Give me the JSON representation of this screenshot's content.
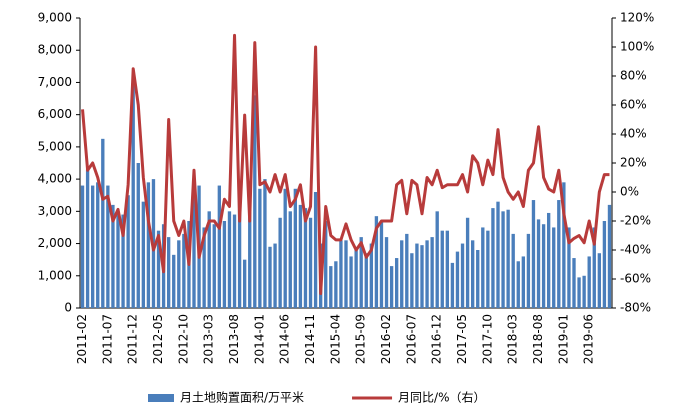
{
  "chart_data": {
    "type": "bar-line",
    "categories": [
      "2011-02",
      null,
      null,
      null,
      null,
      "2011-07",
      null,
      null,
      null,
      null,
      "2011-12",
      null,
      null,
      null,
      null,
      "2012-05",
      null,
      null,
      null,
      null,
      "2012-10",
      null,
      null,
      null,
      null,
      "2013-03",
      null,
      null,
      null,
      null,
      "2013-08",
      null,
      null,
      null,
      null,
      "2014-01",
      null,
      null,
      null,
      null,
      "2014-06",
      null,
      null,
      null,
      null,
      "2014-11",
      null,
      null,
      null,
      null,
      "2015-04",
      null,
      null,
      null,
      null,
      "2015-09",
      null,
      null,
      null,
      null,
      "2016-02",
      null,
      null,
      null,
      null,
      "2016-07",
      null,
      null,
      null,
      null,
      "2016-12",
      null,
      null,
      null,
      null,
      "2017-05",
      null,
      null,
      null,
      null,
      "2017-10",
      null,
      null,
      null,
      null,
      "2018-03",
      null,
      null,
      null,
      null,
      "2018-08",
      null,
      null,
      null,
      null,
      "2019-01",
      null,
      null,
      null,
      null,
      "2019-06",
      null,
      null,
      null,
      null
    ],
    "series": [
      {
        "name": "月土地购置面积/万平米",
        "type": "bar",
        "color": "#4a7ebb",
        "values": [
          3800,
          4300,
          3800,
          3900,
          5250,
          3800,
          3200,
          3000,
          2900,
          3500,
          6900,
          4500,
          3300,
          3900,
          4000,
          2400,
          2600,
          2200,
          1650,
          2100,
          2300,
          2700,
          3500,
          3800,
          2500,
          3000,
          2600,
          3800,
          2700,
          3000,
          2900,
          3600,
          1500,
          3800,
          6600,
          3700,
          4000,
          1900,
          2000,
          2800,
          3700,
          3000,
          3700,
          3200,
          3100,
          2800,
          3600,
          2000,
          2700,
          1300,
          1450,
          2100,
          2100,
          1600,
          1800,
          2200,
          1700,
          2000,
          2850,
          2700,
          2200,
          1300,
          1550,
          2100,
          2300,
          1700,
          2000,
          1950,
          2100,
          2200,
          3000,
          2400,
          2400,
          1400,
          1750,
          2000,
          2800,
          2100,
          1800,
          2500,
          2400,
          3100,
          3300,
          3000,
          3050,
          2300,
          1450,
          1600,
          2300,
          3350,
          2750,
          2600,
          2950,
          2500,
          3350,
          3900,
          2500,
          1550,
          950,
          1000,
          1600,
          2500,
          1700,
          2700,
          3200
        ]
      },
      {
        "name": "月同比/%（右）",
        "type": "line",
        "axis": "y2",
        "color": "#b83b3b",
        "values": [
          57,
          15,
          20,
          10,
          -5,
          -3,
          -20,
          -12,
          -30,
          5,
          85,
          60,
          10,
          -20,
          -40,
          -30,
          -55,
          50,
          -20,
          -30,
          -20,
          -50,
          15,
          -45,
          -30,
          -20,
          -20,
          -25,
          -5,
          -10,
          108,
          -20,
          53,
          -20,
          103,
          5,
          7,
          0,
          12,
          0,
          12,
          -10,
          -5,
          5,
          -20,
          -10,
          100,
          -70,
          -10,
          -30,
          -33,
          -33,
          -22,
          -33,
          -40,
          -35,
          -45,
          -40,
          -25,
          -20,
          -20,
          -20,
          5,
          8,
          -15,
          8,
          5,
          -15,
          10,
          5,
          15,
          3,
          5,
          5,
          5,
          12,
          0,
          25,
          20,
          5,
          22,
          12,
          43,
          10,
          0,
          -5,
          0,
          -10,
          15,
          20,
          45,
          10,
          2,
          0,
          15,
          -15,
          -35,
          -32,
          -30,
          -35,
          -20,
          -36,
          0,
          12,
          12
        ]
      }
    ],
    "ylim": [
      0,
      9000
    ],
    "yticks": [
      0,
      {
        "value": 1000,
        "label": "1,000"
      },
      {
        "value": 2000,
        "label": "2,000"
      },
      {
        "value": 3000,
        "label": "3,000"
      },
      {
        "value": 4000,
        "label": "4,000"
      },
      {
        "value": 5000,
        "label": "5,000"
      },
      {
        "value": 6000,
        "label": "6,000"
      },
      {
        "value": 7000,
        "label": "7,000"
      },
      {
        "value": 8000,
        "label": "8,000"
      },
      {
        "value": 9000,
        "label": "9,000"
      }
    ],
    "y2lim": [
      -80,
      120
    ],
    "y2ticks": [
      {
        "value": -80,
        "label": "-80%"
      },
      {
        "value": -60,
        "label": "-60%"
      },
      {
        "value": -40,
        "label": "-40%"
      },
      {
        "value": -20,
        "label": "-20%"
      },
      {
        "value": 0,
        "label": "0%"
      },
      {
        "value": 20,
        "label": "20%"
      },
      {
        "value": 40,
        "label": "40%"
      },
      {
        "value": 60,
        "label": "60%"
      },
      {
        "value": 80,
        "label": "80%"
      },
      {
        "value": 100,
        "label": "100%"
      },
      {
        "value": 120,
        "label": "120%"
      }
    ],
    "legend": "bottom"
  }
}
